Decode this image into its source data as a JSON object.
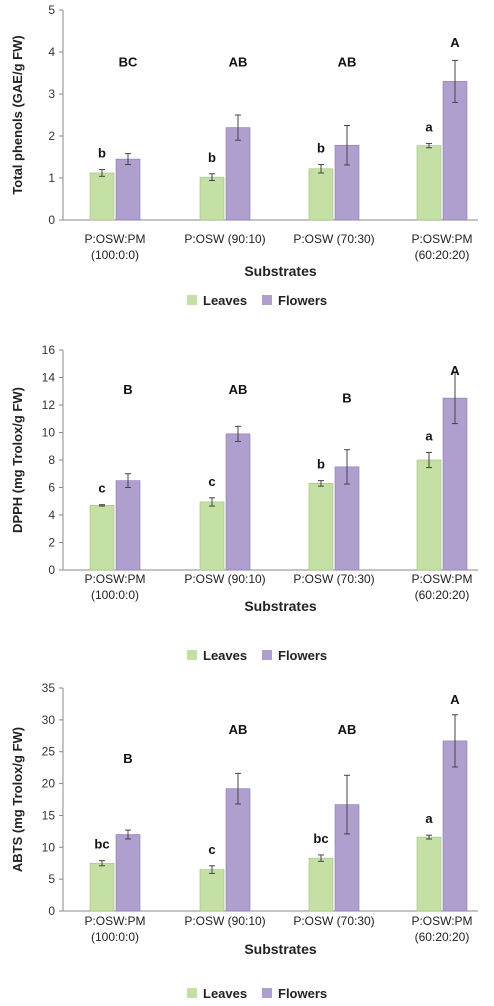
{
  "colors": {
    "leaves": "#c5e0a5",
    "flowers": "#ae9fce",
    "leaves_stroke": "#9fc27a",
    "flowers_stroke": "#8a7ab4",
    "axis": "#888888",
    "errorbar": "#444444"
  },
  "chart_data": [
    {
      "type": "bar",
      "xlabel": "Substrates",
      "ylabel": "Total phenols (GAE/g FW)",
      "ylim": [
        0,
        5
      ],
      "yticks": [
        0,
        1,
        2,
        3,
        4,
        5
      ],
      "categories": [
        [
          "P:OSW:PM",
          "(100:0:0)"
        ],
        [
          "P:OSW (90:10)"
        ],
        [
          "P:OSW (70:30)"
        ],
        [
          "P:OSW:PM",
          "(60:20:20)"
        ]
      ],
      "series": [
        {
          "name": "Leaves",
          "values": [
            1.12,
            1.02,
            1.22,
            1.77
          ],
          "errors": [
            0.08,
            0.08,
            0.1,
            0.05
          ],
          "letters": [
            "b",
            "b",
            "b",
            "a"
          ]
        },
        {
          "name": "Flowers",
          "values": [
            1.45,
            2.2,
            1.78,
            3.3
          ],
          "errors": [
            0.13,
            0.3,
            0.47,
            0.5
          ]
        }
      ],
      "group_letters": [
        "BC",
        "AB",
        "AB",
        "A"
      ],
      "legend": "bottom",
      "grid": false
    },
    {
      "type": "bar",
      "xlabel": "Substrates",
      "ylabel": "DPPH (mg Trolox/g FW)",
      "ylim": [
        0,
        16
      ],
      "yticks": [
        0,
        2,
        4,
        6,
        8,
        10,
        12,
        14,
        16
      ],
      "categories": [
        [
          "P:OSW:PM",
          "(100:0:0)"
        ],
        [
          "P:OSW (90:10)"
        ],
        [
          "P:OSW (70:30)"
        ],
        [
          "P:OSW:PM",
          "(60:20:20)"
        ]
      ],
      "series": [
        {
          "name": "Leaves",
          "values": [
            4.7,
            4.95,
            6.3,
            8.0
          ],
          "errors": [
            0.05,
            0.3,
            0.2,
            0.55
          ],
          "letters": [
            "c",
            "c",
            "b",
            "a"
          ]
        },
        {
          "name": "Flowers",
          "values": [
            6.5,
            9.9,
            7.5,
            12.5
          ],
          "errors": [
            0.5,
            0.55,
            1.25,
            1.85
          ]
        }
      ],
      "group_letters": [
        "B",
        "AB",
        "B",
        "A"
      ],
      "legend": "bottom",
      "grid": false
    },
    {
      "type": "bar",
      "xlabel": "Substrates",
      "ylabel": "ABTS (mg Trolox/g FW)",
      "ylim": [
        0,
        35
      ],
      "yticks": [
        0,
        5,
        10,
        15,
        20,
        25,
        30,
        35
      ],
      "categories": [
        [
          "P:OSW:PM",
          "(100:0:0)"
        ],
        [
          "P:OSW (90:10)"
        ],
        [
          "P:OSW (70:30)"
        ],
        [
          "P:OSW:PM",
          "(60:20:20)"
        ]
      ],
      "series": [
        {
          "name": "Leaves",
          "values": [
            7.5,
            6.5,
            8.3,
            11.6
          ],
          "errors": [
            0.4,
            0.6,
            0.5,
            0.3
          ],
          "letters": [
            "bc",
            "c",
            "bc",
            "a"
          ]
        },
        {
          "name": "Flowers",
          "values": [
            12.0,
            19.2,
            16.7,
            26.7
          ],
          "errors": [
            0.7,
            2.4,
            4.6,
            4.1
          ]
        }
      ],
      "group_letters": [
        "B",
        "AB",
        "AB",
        "A"
      ],
      "legend": "bottom",
      "grid": false
    }
  ]
}
